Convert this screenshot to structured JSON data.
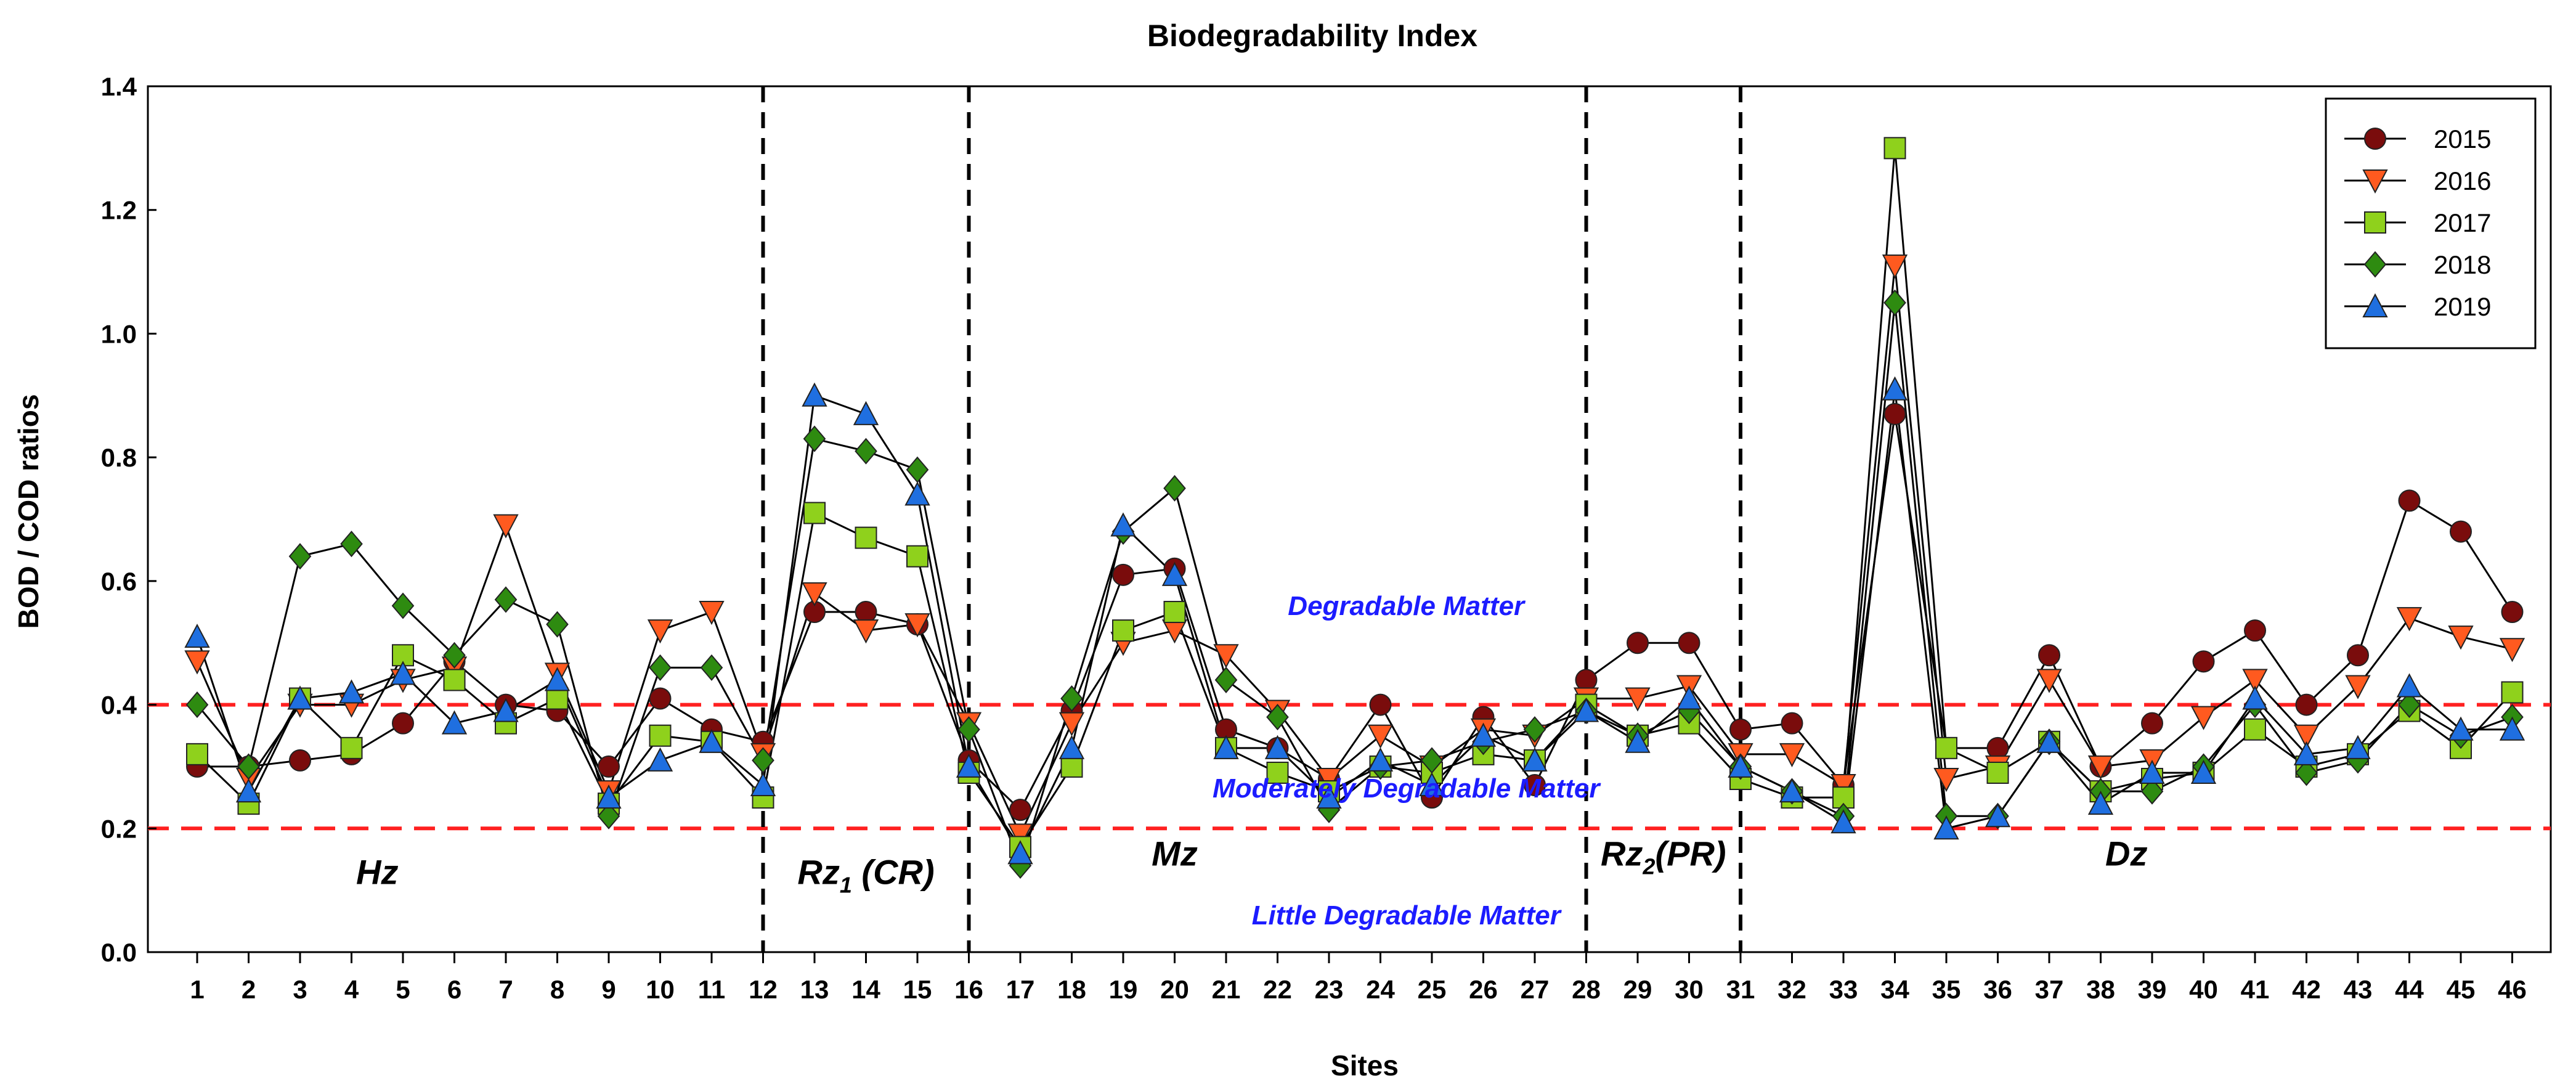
{
  "chart_data": {
    "type": "line",
    "title": "Biodegradability Index",
    "xlabel": "Sites",
    "ylabel": "BOD / COD ratios",
    "ylim": [
      0,
      1.4
    ],
    "yticks": [
      "0.0",
      "0.2",
      "0.4",
      "0.6",
      "0.8",
      "1.0",
      "1.2",
      "1.4"
    ],
    "x": [
      1,
      2,
      3,
      4,
      5,
      6,
      7,
      8,
      9,
      10,
      11,
      12,
      13,
      14,
      15,
      16,
      17,
      18,
      19,
      20,
      21,
      22,
      23,
      24,
      25,
      26,
      27,
      28,
      29,
      30,
      31,
      32,
      33,
      34,
      35,
      36,
      37,
      38,
      39,
      40,
      41,
      42,
      43,
      44,
      45,
      46
    ],
    "legend_position": "top-right",
    "series": [
      {
        "name": "2015",
        "marker": "circle",
        "color": "#7a0c0c",
        "values": [
          0.3,
          0.3,
          0.31,
          0.32,
          0.37,
          0.47,
          0.4,
          0.39,
          0.3,
          0.41,
          0.36,
          0.34,
          0.55,
          0.55,
          0.53,
          0.31,
          0.23,
          0.39,
          0.61,
          0.62,
          0.36,
          0.33,
          0.28,
          0.4,
          0.25,
          0.38,
          0.27,
          0.44,
          0.5,
          0.5,
          0.36,
          0.37,
          0.27,
          0.87,
          0.33,
          0.33,
          0.48,
          0.3,
          0.37,
          0.47,
          0.52,
          0.4,
          0.48,
          0.73,
          0.68,
          0.55
        ]
      },
      {
        "name": "2016",
        "marker": "triangle-down",
        "color": "#ff5a1f",
        "values": [
          0.47,
          0.28,
          0.4,
          0.4,
          0.44,
          0.46,
          0.69,
          0.45,
          0.26,
          0.52,
          0.55,
          0.32,
          0.58,
          0.52,
          0.53,
          0.37,
          0.19,
          0.37,
          0.5,
          0.52,
          0.48,
          0.39,
          0.28,
          0.35,
          0.3,
          0.36,
          0.35,
          0.41,
          0.41,
          0.43,
          0.32,
          0.32,
          0.27,
          1.11,
          0.28,
          0.3,
          0.44,
          0.3,
          0.31,
          0.38,
          0.44,
          0.35,
          0.43,
          0.54,
          0.51,
          0.49
        ]
      },
      {
        "name": "2017",
        "marker": "square",
        "color": "#8fd11c",
        "values": [
          0.32,
          0.24,
          0.41,
          0.33,
          0.48,
          0.44,
          0.37,
          0.41,
          0.24,
          0.35,
          0.34,
          0.25,
          0.71,
          0.67,
          0.64,
          0.29,
          0.17,
          0.3,
          0.52,
          0.55,
          0.33,
          0.29,
          0.26,
          0.3,
          0.29,
          0.32,
          0.31,
          0.4,
          0.35,
          0.37,
          0.28,
          0.25,
          0.25,
          1.3,
          0.33,
          0.29,
          0.34,
          0.26,
          0.28,
          0.29,
          0.36,
          0.3,
          0.32,
          0.39,
          0.33,
          0.42
        ]
      },
      {
        "name": "2018",
        "marker": "diamond",
        "color": "#2e8b10",
        "values": [
          0.4,
          0.3,
          0.64,
          0.66,
          0.56,
          0.48,
          0.57,
          0.53,
          0.22,
          0.46,
          0.46,
          0.31,
          0.83,
          0.81,
          0.78,
          0.36,
          0.14,
          0.41,
          0.68,
          0.75,
          0.44,
          0.38,
          0.23,
          0.3,
          0.31,
          0.34,
          0.36,
          0.39,
          0.35,
          0.39,
          0.3,
          0.26,
          0.22,
          1.05,
          0.22,
          0.22,
          0.34,
          0.26,
          0.26,
          0.3,
          0.4,
          0.29,
          0.31,
          0.4,
          0.35,
          0.38
        ]
      },
      {
        "name": "2019",
        "marker": "triangle-up",
        "color": "#1f6fe0",
        "values": [
          0.51,
          0.26,
          0.41,
          0.42,
          0.45,
          0.37,
          0.39,
          0.44,
          0.25,
          0.31,
          0.34,
          0.27,
          0.9,
          0.87,
          0.74,
          0.3,
          0.16,
          0.33,
          0.69,
          0.61,
          0.33,
          0.33,
          0.25,
          0.31,
          0.27,
          0.35,
          0.31,
          0.39,
          0.34,
          0.41,
          0.3,
          0.26,
          0.21,
          0.91,
          0.2,
          0.22,
          0.34,
          0.24,
          0.29,
          0.29,
          0.41,
          0.32,
          0.33,
          0.43,
          0.36,
          0.36
        ]
      }
    ],
    "thresholds": [
      {
        "value": 0.4,
        "color": "#ff2020"
      },
      {
        "value": 0.2,
        "color": "#ff2020"
      }
    ],
    "zone_dividers": [
      12,
      16,
      28,
      31
    ],
    "zones": [
      {
        "label": "Hz",
        "sub": "",
        "suffix": "",
        "x": 4.5,
        "y": 0.11
      },
      {
        "label": "Rz",
        "sub": "1",
        "suffix": " (CR)",
        "x": 14.0,
        "y": 0.11
      },
      {
        "label": "Mz",
        "sub": "",
        "suffix": "",
        "x": 20.0,
        "y": 0.14
      },
      {
        "label": "Rz",
        "sub": "2",
        "suffix": "(PR)",
        "x": 29.5,
        "y": 0.14
      },
      {
        "label": "Dz",
        "sub": "",
        "suffix": "",
        "x": 38.5,
        "y": 0.14
      }
    ],
    "annotations": [
      {
        "text": "Degradable Matter",
        "x": 24.5,
        "y": 0.545
      },
      {
        "text": "Moderately Degradable Matter",
        "x": 24.5,
        "y": 0.25
      },
      {
        "text": "Little Degradable Matter",
        "x": 24.5,
        "y": 0.045
      }
    ]
  }
}
